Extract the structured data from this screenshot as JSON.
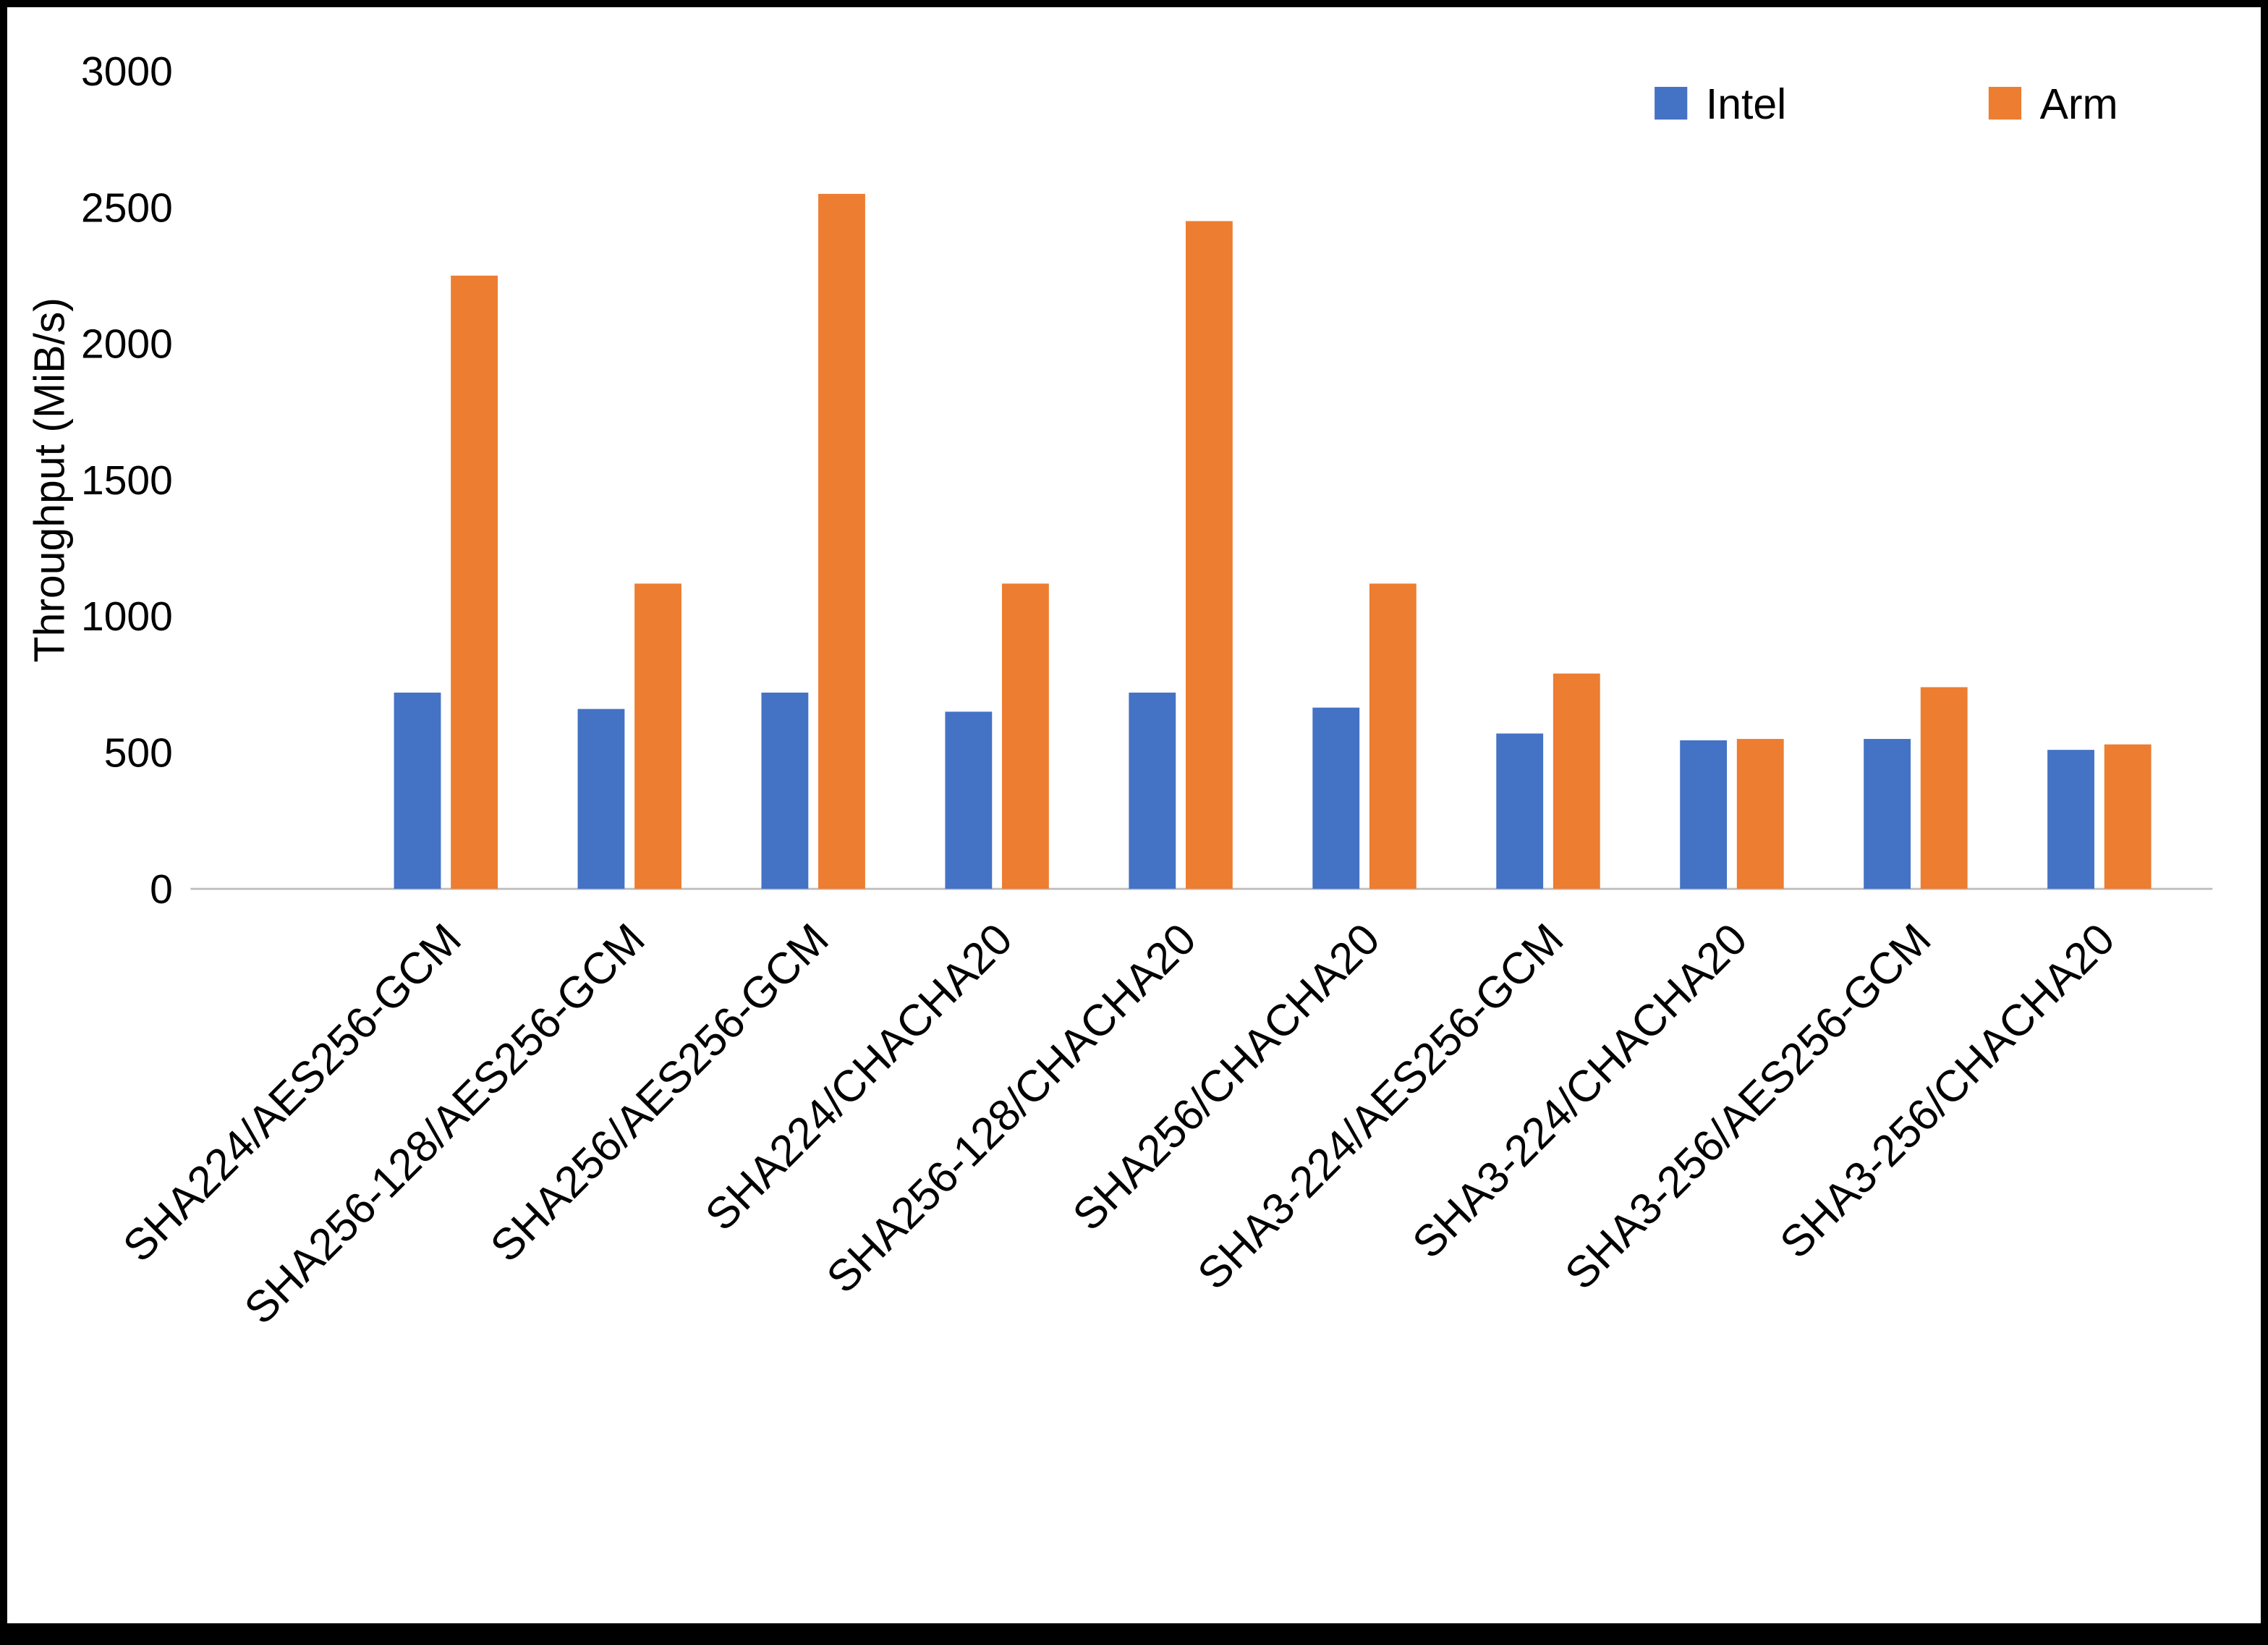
{
  "chart_data": {
    "type": "bar",
    "title": "",
    "xlabel": "",
    "ylabel": "Throughput (MiB/s)",
    "ylim": [
      0,
      3000
    ],
    "ytick_interval": 500,
    "grid": false,
    "legend_position": "top-right",
    "categories": [
      "SHA224/AES256-GCM",
      "SHA256-128/AES256-GCM",
      "SHA256/AES256-GCM",
      "SHA224/CHACHA20",
      "SHA256-128/CHACHA20",
      "SHA256/CHACHA20",
      "SHA3-224/AES256-GCM",
      "SHA3-224/CHACHA20",
      "SHA3-256/AES256-GCM",
      "SHA3-256/CHACHA20"
    ],
    "series": [
      {
        "name": "Intel",
        "color": "#4472C4",
        "values": [
          720,
          660,
          720,
          650,
          720,
          665,
          570,
          545,
          550,
          510
        ]
      },
      {
        "name": "Arm",
        "color": "#ED7D31",
        "values": [
          2250,
          1120,
          2550,
          1120,
          2450,
          1120,
          790,
          550,
          740,
          530
        ]
      }
    ]
  },
  "colors": {
    "background": "#FFFFFF",
    "border": "#000000",
    "axis_line": "#BFBFBF",
    "text": "#000000"
  }
}
